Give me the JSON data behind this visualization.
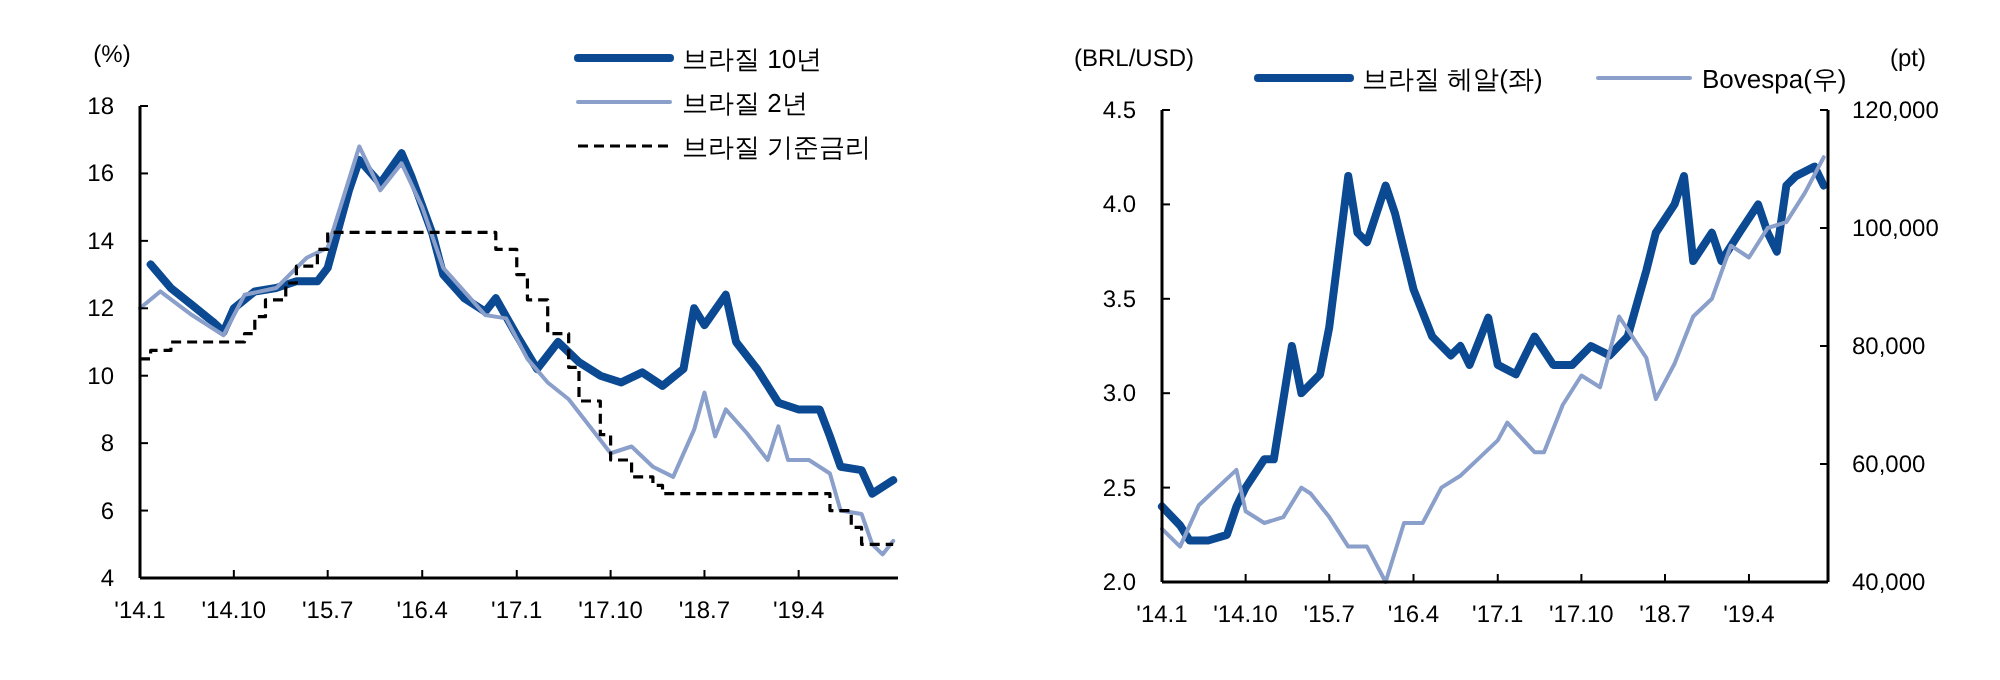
{
  "chart_data": [
    {
      "type": "line",
      "ylabel": "(%)",
      "legend": "top right",
      "grid": false,
      "xlim": [
        "2014-01-01",
        "2020-01-15"
      ],
      "xticks": [
        {
          "value": "2014-01",
          "label": "'14.1"
        },
        {
          "value": "2014-10",
          "label": "'14.10"
        },
        {
          "value": "2015-07",
          "label": "'15.7"
        },
        {
          "value": "2016-04",
          "label": "'16.4"
        },
        {
          "value": "2017-01",
          "label": "'17.1"
        },
        {
          "value": "2017-10",
          "label": "'17.10"
        },
        {
          "value": "2018-07",
          "label": "'18.7"
        },
        {
          "value": "2019-04",
          "label": "'19.4"
        }
      ],
      "ylim": [
        4,
        18
      ],
      "yticks": [
        4,
        6,
        8,
        10,
        12,
        14,
        16,
        18
      ],
      "series": [
        {
          "name": "브라질 10년",
          "color": "#0b4a92",
          "x": [
            "2014-02",
            "2014-04",
            "2014-06",
            "2014-08",
            "2014-09",
            "2014-10",
            "2014-12",
            "2015-02",
            "2015-04",
            "2015-06",
            "2015-07",
            "2015-09",
            "2015-10",
            "2015-12",
            "2016-02",
            "2016-03",
            "2016-05",
            "2016-06",
            "2016-08",
            "2016-10",
            "2016-11",
            "2017-01",
            "2017-03",
            "2017-05",
            "2017-07",
            "2017-09",
            "2017-11",
            "2018-01",
            "2018-03",
            "2018-05",
            "2018-06",
            "2018-07",
            "2018-09",
            "2018-10",
            "2018-12",
            "2019-02",
            "2019-04",
            "2019-06",
            "2019-07",
            "2019-08",
            "2019-10",
            "2019-11",
            "2020-01"
          ],
          "values": [
            13.3,
            12.6,
            12.1,
            11.6,
            11.3,
            12.0,
            12.5,
            12.6,
            12.8,
            12.8,
            13.2,
            15.5,
            16.4,
            15.7,
            16.6,
            15.9,
            14.2,
            13.0,
            12.3,
            11.9,
            12.3,
            11.2,
            10.2,
            11.0,
            10.4,
            10.0,
            9.8,
            10.1,
            9.7,
            10.2,
            12.0,
            11.5,
            12.4,
            11.0,
            10.2,
            9.2,
            9.0,
            9.0,
            8.2,
            7.3,
            7.2,
            6.5,
            6.9
          ]
        },
        {
          "name": "브라질 2년",
          "color": "#8a9fca",
          "x": [
            "2014-01",
            "2014-03",
            "2014-06",
            "2014-09",
            "2014-11",
            "2015-02",
            "2015-05",
            "2015-07",
            "2015-10",
            "2015-12",
            "2016-02",
            "2016-04",
            "2016-06",
            "2016-08",
            "2016-10",
            "2016-12",
            "2017-02",
            "2017-04",
            "2017-06",
            "2017-08",
            "2017-10",
            "2017-12",
            "2018-02",
            "2018-04",
            "2018-06",
            "2018-07",
            "2018-08",
            "2018-09",
            "2018-11",
            "2019-01",
            "2019-02",
            "2019-03",
            "2019-05",
            "2019-07",
            "2019-08",
            "2019-10",
            "2019-11",
            "2019-12",
            "2020-01"
          ],
          "values": [
            12.0,
            12.5,
            11.8,
            11.2,
            12.4,
            12.6,
            13.5,
            13.8,
            16.8,
            15.5,
            16.3,
            15.0,
            13.2,
            12.5,
            11.8,
            11.7,
            10.5,
            9.8,
            9.3,
            8.5,
            7.7,
            7.9,
            7.3,
            7.0,
            8.4,
            9.5,
            8.2,
            9.0,
            8.3,
            7.5,
            8.5,
            7.5,
            7.5,
            7.1,
            6.0,
            5.9,
            5.0,
            4.7,
            5.1
          ]
        },
        {
          "name": "브라질 기준금리",
          "color": "#000000",
          "type": "step",
          "line_style": "dashed",
          "x": [
            "2014-01",
            "2014-02",
            "2014-04",
            "2014-11",
            "2014-12",
            "2015-01",
            "2015-03",
            "2015-04",
            "2015-06",
            "2015-07",
            "2016-11",
            "2017-01",
            "2017-02",
            "2017-04",
            "2017-06",
            "2017-07",
            "2017-09",
            "2017-10",
            "2017-12",
            "2018-02",
            "2018-03",
            "2019-07",
            "2019-09",
            "2019-10",
            "2020-01"
          ],
          "values": [
            10.5,
            10.75,
            11.0,
            11.25,
            11.75,
            12.25,
            12.75,
            13.25,
            13.75,
            14.25,
            13.75,
            13.0,
            12.25,
            11.25,
            10.25,
            9.25,
            8.25,
            7.5,
            7.0,
            6.75,
            6.5,
            6.0,
            5.5,
            5.0,
            5.0
          ]
        }
      ]
    },
    {
      "type": "line",
      "ylabel": "(BRL/USD)",
      "y2label": "(pt)",
      "legend": "top",
      "grid": false,
      "xlim": [
        "2014-01-01",
        "2019-12-15"
      ],
      "xticks": [
        {
          "value": "2014-01",
          "label": "'14.1"
        },
        {
          "value": "2014-10",
          "label": "'14.10"
        },
        {
          "value": "2015-07",
          "label": "'15.7"
        },
        {
          "value": "2016-04",
          "label": "'16.4"
        },
        {
          "value": "2017-01",
          "label": "'17.1"
        },
        {
          "value": "2017-10",
          "label": "'17.10"
        },
        {
          "value": "2018-07",
          "label": "'18.7"
        },
        {
          "value": "2019-04",
          "label": "'19.4"
        }
      ],
      "ylim": [
        2,
        4.5
      ],
      "yticks": [
        {
          "value": 2,
          "label": "2.0"
        },
        2.5,
        {
          "value": 3,
          "label": "3.0"
        },
        3.5,
        {
          "value": 4,
          "label": "4.0"
        },
        4.5
      ],
      "y2lim": [
        40000,
        120000
      ],
      "y2ticks": [
        {
          "value": 40000,
          "label": "40,000"
        },
        {
          "value": 60000,
          "label": "60,000"
        },
        {
          "value": 80000,
          "label": "80,000"
        },
        {
          "value": 100000,
          "label": "100,000"
        },
        {
          "value": 120000,
          "label": "120,000"
        }
      ],
      "series": [
        {
          "name": "브라질 헤알(좌)",
          "color": "#0b4a92",
          "x": [
            "2014-01",
            "2014-03",
            "2014-04",
            "2014-06",
            "2014-08",
            "2014-09",
            "2014-10",
            "2014-12",
            "2015-01",
            "2015-03",
            "2015-04",
            "2015-06",
            "2015-07",
            "2015-09",
            "2015-10",
            "2015-11",
            "2016-01",
            "2016-02",
            "2016-04",
            "2016-06",
            "2016-08",
            "2016-09",
            "2016-10",
            "2016-12",
            "2017-01",
            "2017-03",
            "2017-05",
            "2017-07",
            "2017-09",
            "2017-11",
            "2018-01",
            "2018-03",
            "2018-05",
            "2018-06",
            "2018-08",
            "2018-09",
            "2018-10",
            "2018-12",
            "2019-01",
            "2019-03",
            "2019-05",
            "2019-06",
            "2019-07",
            "2019-08",
            "2019-09",
            "2019-11",
            "2019-12"
          ],
          "values": [
            2.4,
            2.3,
            2.22,
            2.22,
            2.25,
            2.4,
            2.5,
            2.65,
            2.65,
            3.25,
            3.0,
            3.1,
            3.35,
            4.15,
            3.85,
            3.8,
            4.1,
            3.95,
            3.55,
            3.3,
            3.2,
            3.25,
            3.15,
            3.4,
            3.15,
            3.1,
            3.3,
            3.15,
            3.15,
            3.25,
            3.2,
            3.3,
            3.65,
            3.85,
            4.0,
            4.15,
            3.7,
            3.85,
            3.7,
            3.85,
            4.0,
            3.85,
            3.75,
            4.1,
            4.15,
            4.2,
            4.1
          ]
        },
        {
          "name": "Bovespa(우)",
          "color": "#8a9fca",
          "axis": "y2",
          "x": [
            "2014-01",
            "2014-03",
            "2014-05",
            "2014-07",
            "2014-09",
            "2014-10",
            "2014-12",
            "2015-02",
            "2015-04",
            "2015-05",
            "2015-07",
            "2015-09",
            "2015-11",
            "2016-01",
            "2016-03",
            "2016-05",
            "2016-07",
            "2016-09",
            "2016-11",
            "2017-01",
            "2017-02",
            "2017-05",
            "2017-06",
            "2017-08",
            "2017-10",
            "2017-12",
            "2018-02",
            "2018-05",
            "2018-06",
            "2018-08",
            "2018-10",
            "2018-12",
            "2019-02",
            "2019-04",
            "2019-06",
            "2019-08",
            "2019-10",
            "2019-12"
          ],
          "values": [
            49000,
            46000,
            53000,
            56000,
            59000,
            52000,
            50000,
            51000,
            56000,
            55000,
            51000,
            46000,
            46000,
            40000,
            50000,
            50000,
            56000,
            58000,
            61000,
            64000,
            67000,
            62000,
            62000,
            70000,
            75000,
            73000,
            85000,
            78000,
            71000,
            77000,
            85000,
            88000,
            97000,
            95000,
            100000,
            101000,
            106000,
            112000
          ]
        }
      ]
    }
  ]
}
